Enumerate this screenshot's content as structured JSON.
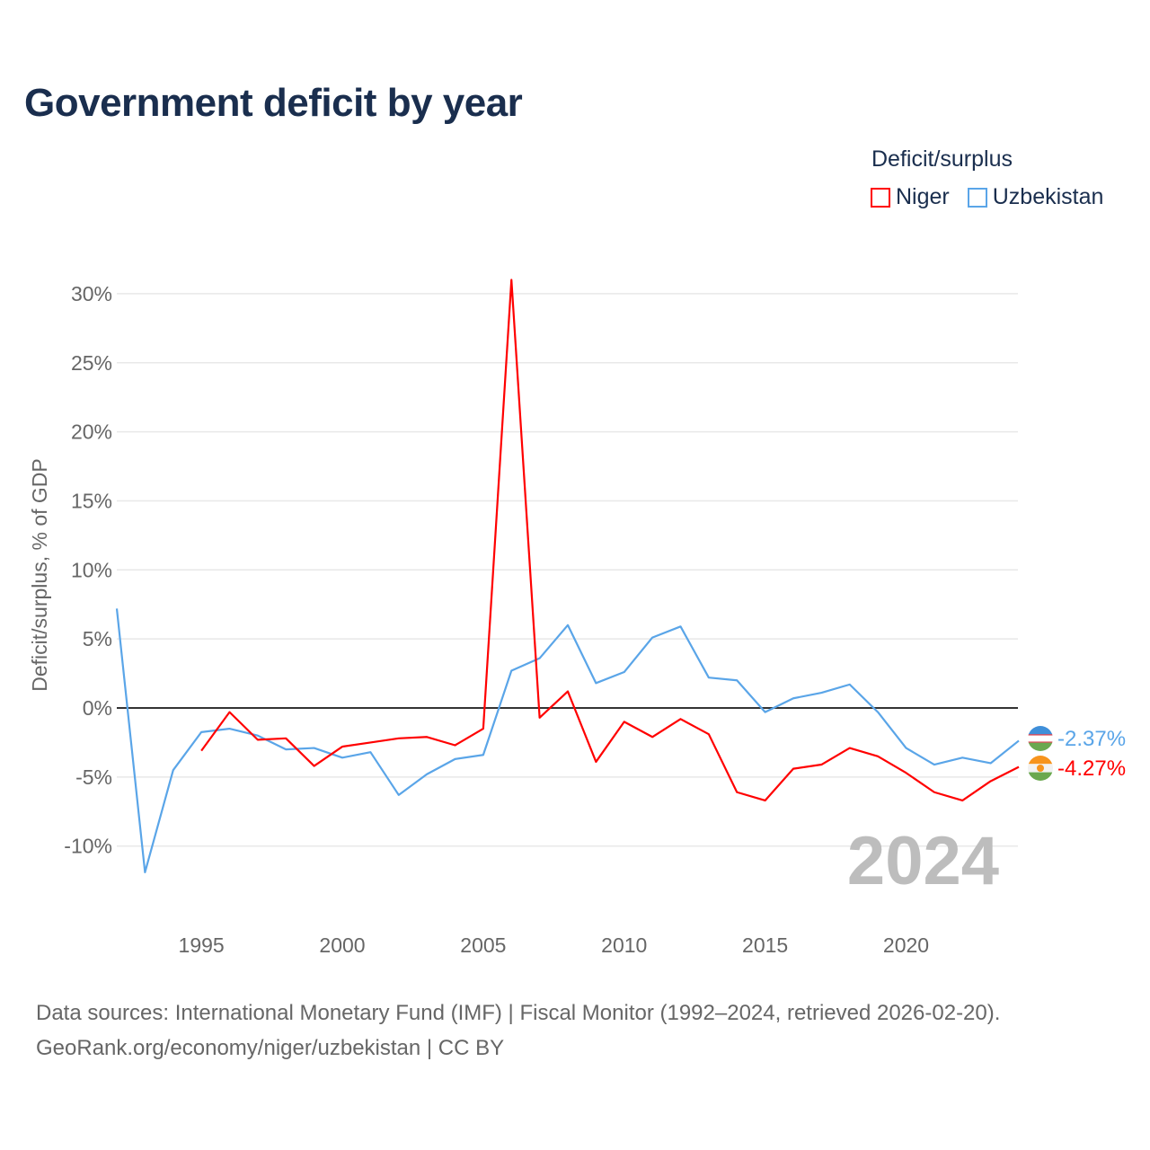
{
  "chart_data": {
    "type": "line",
    "title": "Government deficit by year",
    "xlabel": "",
    "ylabel": "Deficit/surplus, % of GDP",
    "ylim": [
      -13.5,
      31
    ],
    "xlim": [
      1992,
      2024
    ],
    "yticks": [
      -10,
      -5,
      0,
      5,
      10,
      15,
      20,
      25,
      30
    ],
    "ytick_labels": [
      "-10%",
      "-5%",
      "0%",
      "5%",
      "10%",
      "15%",
      "20%",
      "25%",
      "30%"
    ],
    "xticks": [
      1995,
      2000,
      2005,
      2010,
      2015,
      2020
    ],
    "xtick_labels": [
      "1995",
      "2000",
      "2005",
      "2010",
      "2015",
      "2020"
    ],
    "legend_title": "Deficit/surplus",
    "legend_position": "top-right",
    "year_label": "2024",
    "series": [
      {
        "name": "Niger",
        "color": "#ff0000",
        "end_label": "-4.27%",
        "x": [
          1995,
          1996,
          1997,
          1998,
          1999,
          2000,
          2001,
          2002,
          2003,
          2004,
          2005,
          2006,
          2007,
          2008,
          2009,
          2010,
          2011,
          2012,
          2013,
          2014,
          2015,
          2016,
          2017,
          2018,
          2019,
          2020,
          2021,
          2022,
          2023,
          2024
        ],
        "values": [
          -3.1,
          -0.3,
          -2.3,
          -2.2,
          -4.2,
          -2.8,
          -2.5,
          -2.2,
          -2.1,
          -2.7,
          -1.5,
          31.0,
          -0.7,
          1.2,
          -3.9,
          -1.0,
          -2.1,
          -0.8,
          -1.9,
          -6.1,
          -6.7,
          -4.4,
          -4.1,
          -2.9,
          -3.5,
          -4.7,
          -6.1,
          -6.7,
          -5.3,
          -4.27
        ]
      },
      {
        "name": "Uzbekistan",
        "color": "#5aa5e8",
        "end_label": "-2.37%",
        "x": [
          1992,
          1993,
          1994,
          1995,
          1996,
          1997,
          1998,
          1999,
          2000,
          2001,
          2002,
          2003,
          2004,
          2005,
          2006,
          2007,
          2008,
          2009,
          2010,
          2011,
          2012,
          2013,
          2014,
          2015,
          2016,
          2017,
          2018,
          2019,
          2020,
          2021,
          2022,
          2023,
          2024
        ],
        "values": [
          7.2,
          -11.9,
          -4.5,
          -1.75,
          -1.5,
          -2.0,
          -3.0,
          -2.9,
          -3.6,
          -3.2,
          -6.3,
          -4.8,
          -3.7,
          -3.4,
          2.7,
          3.6,
          6.0,
          1.8,
          2.6,
          5.1,
          5.9,
          2.2,
          2.0,
          -0.3,
          0.7,
          1.1,
          1.7,
          -0.3,
          -2.9,
          -4.1,
          -3.6,
          -4.0,
          -2.37
        ]
      }
    ]
  },
  "footer": {
    "line1": "Data sources: International Monetary Fund (IMF) | Fiscal Monitor (1992–2024, retrieved 2026-02-20).",
    "line2": "GeoRank.org/economy/niger/uzbekistan | CC BY"
  }
}
